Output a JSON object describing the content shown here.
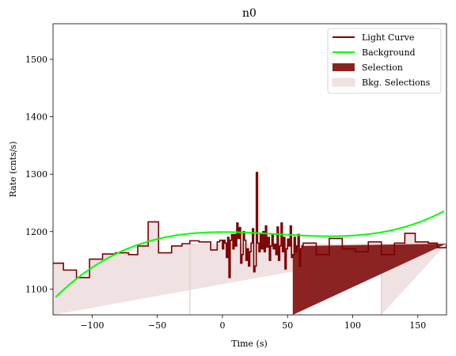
{
  "chart_data": {
    "type": "line",
    "title": "n0",
    "xlabel": "Time (s)",
    "ylabel": "Rate (cnts/s)",
    "xlim": [
      -130,
      172
    ],
    "ylim": [
      1055,
      1562
    ],
    "xticks": [
      -100,
      -50,
      0,
      50,
      100,
      150
    ],
    "yticks": [
      1100,
      1200,
      1300,
      1400,
      1500
    ],
    "xtick_labels": [
      "−100",
      "−50",
      "0",
      "50",
      "100",
      "150"
    ],
    "ytick_labels": [
      "1100",
      "1200",
      "1300",
      "1400",
      "1500"
    ],
    "legend_position": "upper right",
    "legend": [
      {
        "label": "Light Curve",
        "kind": "line",
        "color": "#7a0000"
      },
      {
        "label": "Background",
        "kind": "line",
        "color": "#00ff00"
      },
      {
        "label": "Selection",
        "kind": "patch",
        "color": "#8b2323"
      },
      {
        "label": "Bkg. Selections",
        "kind": "patch",
        "color": "#f0e2e2"
      }
    ],
    "bkg_selections": [
      [
        -130,
        -25
      ],
      [
        122,
        172
      ]
    ],
    "selection": [
      54,
      62
    ],
    "background_poly": {
      "x_range": [
        -128,
        170
      ],
      "coeffs": [
        1199.2,
        0.0075,
        -0.00339,
        2.71e-05
      ]
    },
    "light_curve": {
      "color": "#7a0000",
      "edges": [
        -130,
        -122,
        -112,
        -102,
        -92,
        -82,
        -72,
        -65,
        -57,
        -49,
        -39,
        -31,
        -25,
        -18,
        -9,
        -4,
        -2,
        0,
        1,
        2,
        3,
        4,
        5,
        6,
        7,
        8,
        9,
        10,
        11,
        12,
        13,
        14,
        15,
        16,
        17,
        18,
        19,
        20,
        21,
        22,
        23,
        24,
        25,
        26,
        27,
        28,
        29,
        30,
        31,
        32,
        33,
        34,
        35,
        36,
        37,
        38,
        39,
        40,
        41,
        42,
        43,
        44,
        45,
        46,
        47,
        48,
        49,
        50,
        51,
        52,
        53,
        54,
        55,
        56,
        57,
        58,
        59,
        60,
        61,
        62,
        72,
        82,
        92,
        102,
        112,
        122,
        132,
        140,
        148,
        158,
        165,
        172
      ],
      "values": [
        1145,
        1133,
        1120,
        1152,
        1161,
        1163,
        1160,
        1175,
        1217,
        1163,
        1175,
        1179,
        1184,
        1182,
        1168,
        1182,
        1185,
        1170,
        1185,
        1180,
        1155,
        1190,
        1120,
        1185,
        1195,
        1170,
        1195,
        1175,
        1215,
        1188,
        1207,
        1145,
        1160,
        1200,
        1185,
        1150,
        1170,
        1140,
        1165,
        1180,
        1205,
        1130,
        1140,
        1303,
        1180,
        1165,
        1195,
        1170,
        1200,
        1165,
        1210,
        1173,
        1190,
        1150,
        1175,
        1195,
        1170,
        1178,
        1160,
        1208,
        1150,
        1175,
        1215,
        1165,
        1190,
        1135,
        1170,
        1187,
        1175,
        1210,
        1155,
        1160,
        1190,
        1165,
        1175,
        1195,
        1140,
        1170,
        1175,
        1180,
        1160,
        1188,
        1170,
        1165,
        1182,
        1160,
        1180,
        1197,
        1182,
        1180,
        1172,
        1179
      ]
    }
  }
}
